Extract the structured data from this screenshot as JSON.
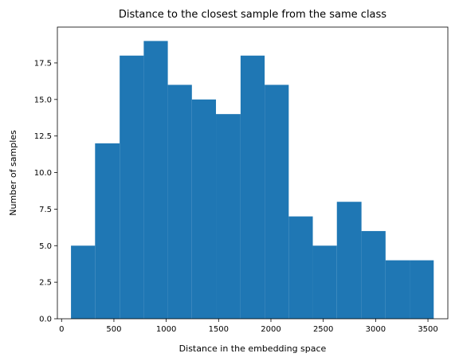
{
  "chart_data": {
    "type": "bar",
    "title": "Distance to the closest sample from the same class",
    "xlabel": "Distance in the embedding space",
    "ylabel": "Number of samples",
    "bins": [
      {
        "start": 90,
        "end": 320,
        "count": 5
      },
      {
        "start": 320,
        "end": 555,
        "count": 12
      },
      {
        "start": 555,
        "end": 785,
        "count": 18
      },
      {
        "start": 785,
        "end": 1015,
        "count": 19
      },
      {
        "start": 1015,
        "end": 1245,
        "count": 16
      },
      {
        "start": 1245,
        "end": 1475,
        "count": 15
      },
      {
        "start": 1475,
        "end": 1710,
        "count": 14
      },
      {
        "start": 1710,
        "end": 1940,
        "count": 18
      },
      {
        "start": 1940,
        "end": 2170,
        "count": 16
      },
      {
        "start": 2170,
        "end": 2400,
        "count": 7
      },
      {
        "start": 2400,
        "end": 2630,
        "count": 5
      },
      {
        "start": 2630,
        "end": 2865,
        "count": 8
      },
      {
        "start": 2865,
        "end": 3095,
        "count": 6
      },
      {
        "start": 3095,
        "end": 3325,
        "count": 4
      },
      {
        "start": 3325,
        "end": 3555,
        "count": 4
      }
    ],
    "xlim": [
      -40,
      3690
    ],
    "ylim": [
      0,
      19.95
    ],
    "xticks": [
      0,
      500,
      1000,
      1500,
      2000,
      2500,
      3000,
      3500
    ],
    "xtick_labels": [
      "0",
      "500",
      "1000",
      "1500",
      "2000",
      "2500",
      "3000",
      "3500"
    ],
    "yticks": [
      0,
      2.5,
      5,
      7.5,
      10,
      12.5,
      15,
      17.5
    ],
    "ytick_labels": [
      "0.0",
      "2.5",
      "5.0",
      "7.5",
      "10.0",
      "12.5",
      "15.0",
      "17.5"
    ],
    "bar_color": "#1f77b4",
    "grid": false,
    "legend": false
  }
}
